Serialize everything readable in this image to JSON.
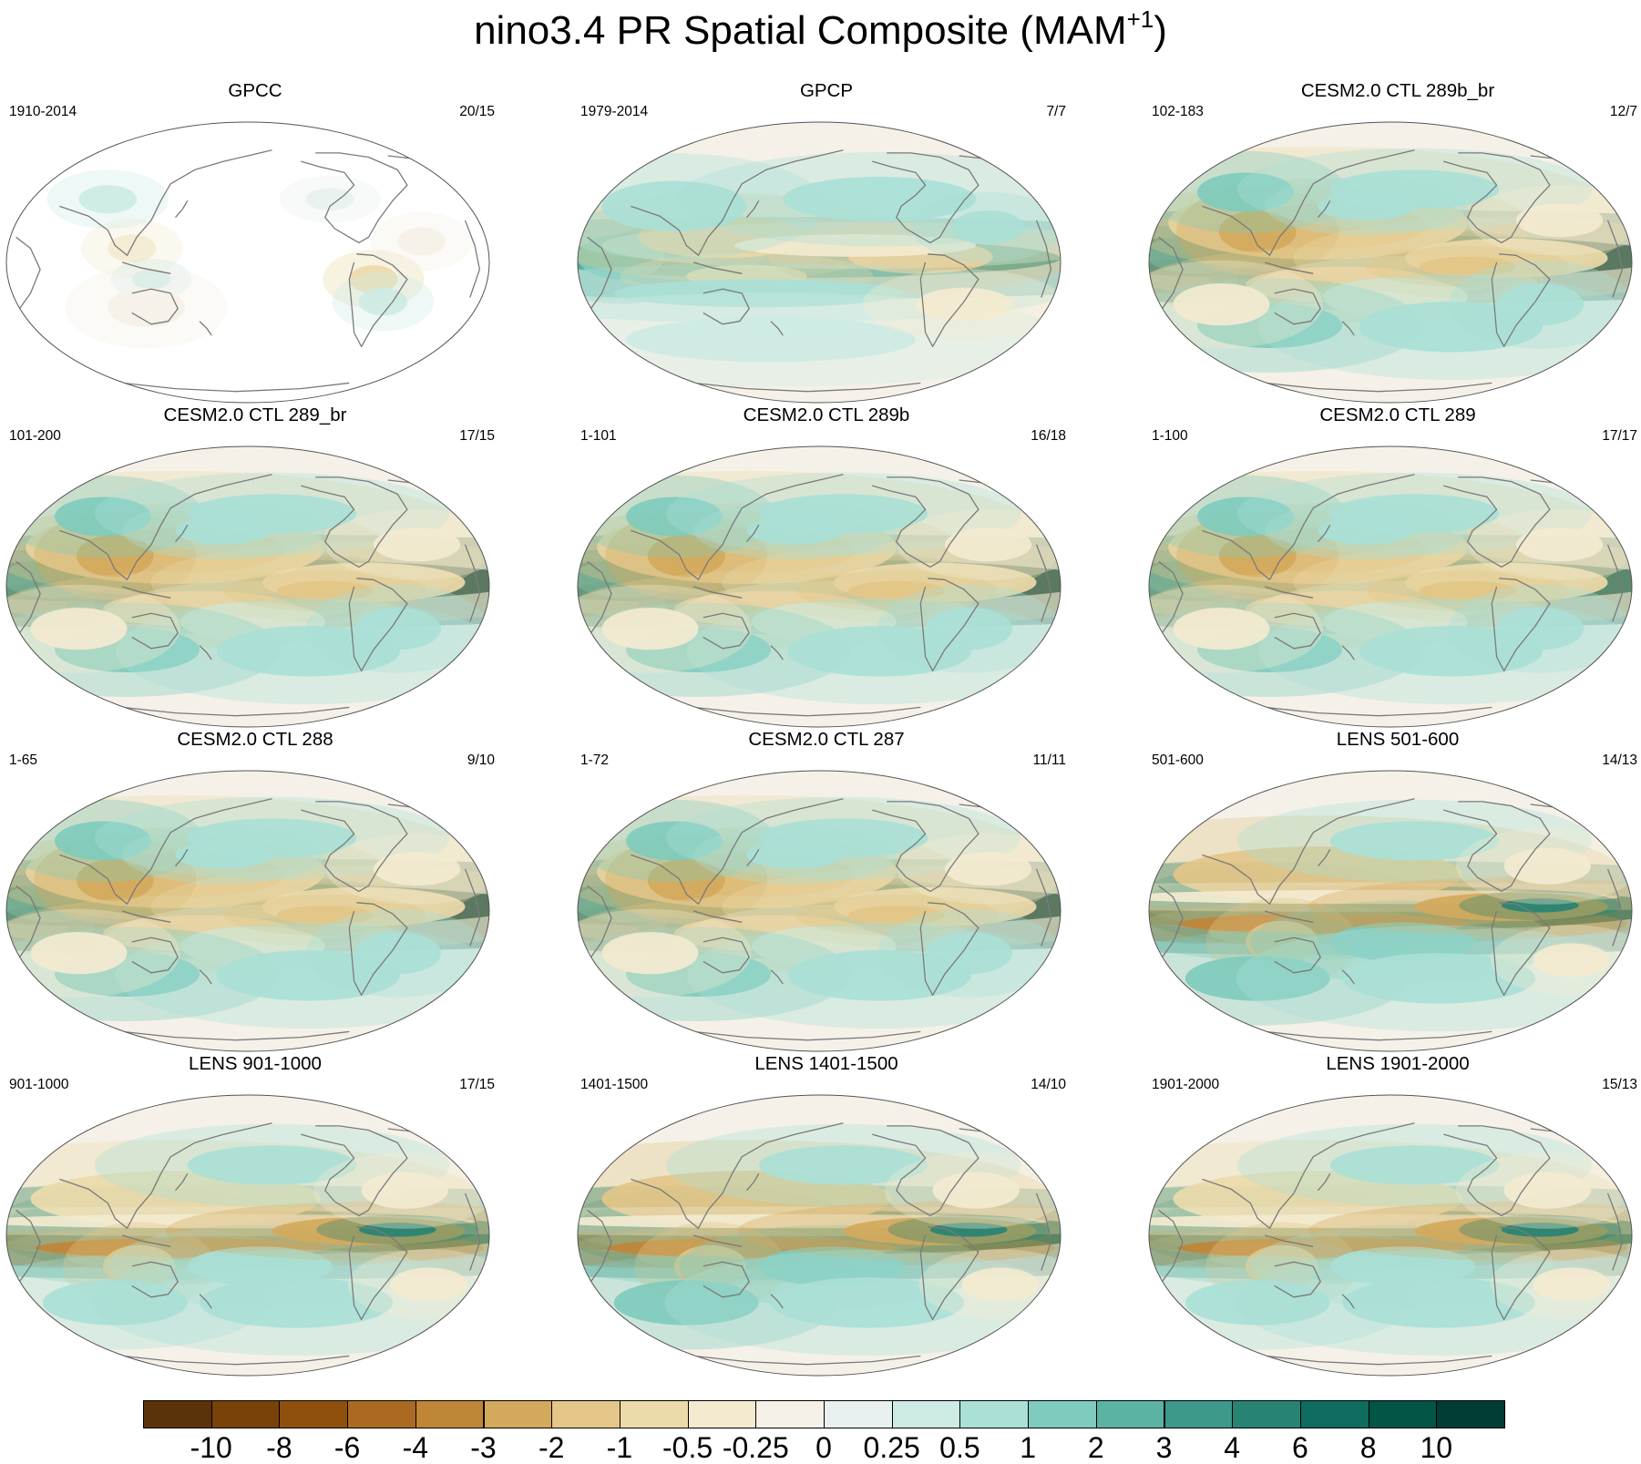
{
  "title": {
    "text": "nino3.4 PR Spatial Composite (MAM",
    "sup": "+1",
    "close": ")"
  },
  "panels": [
    {
      "title": "GPCC",
      "left": "1910-2014",
      "right": "20/15",
      "pattern": "obs-land",
      "strength": 0.45
    },
    {
      "title": "GPCP",
      "left": "1979-2014",
      "right": "7/7",
      "pattern": "obs",
      "strength": 0.75
    },
    {
      "title": "CESM2.0 CTL 289b_br",
      "left": "102-183",
      "right": "12/7",
      "pattern": "model",
      "strength": 1.0
    },
    {
      "title": "CESM2.0 CTL 289_br",
      "left": "101-200",
      "right": "17/15",
      "pattern": "model",
      "strength": 1.0
    },
    {
      "title": "CESM2.0 CTL 289b",
      "left": "1-101",
      "right": "16/18",
      "pattern": "model",
      "strength": 0.95
    },
    {
      "title": "CESM2.0 CTL 289",
      "left": "1-100",
      "right": "17/17",
      "pattern": "model",
      "strength": 0.9
    },
    {
      "title": "CESM2.0 CTL 288",
      "left": "1-65",
      "right": "9/10",
      "pattern": "model",
      "strength": 1.0
    },
    {
      "title": "CESM2.0 CTL 287",
      "left": "1-72",
      "right": "11/11",
      "pattern": "model",
      "strength": 0.95
    },
    {
      "title": "LENS 501-600",
      "left": "501-600",
      "right": "14/13",
      "pattern": "lens",
      "strength": 0.85
    },
    {
      "title": "LENS 901-1000",
      "left": "901-1000",
      "right": "17/15",
      "pattern": "lens",
      "strength": 0.8
    },
    {
      "title": "LENS 1401-1500",
      "left": "1401-1500",
      "right": "14/10",
      "pattern": "lens",
      "strength": 0.85
    },
    {
      "title": "LENS 1901-2000",
      "left": "1901-2000",
      "right": "15/13",
      "pattern": "lens",
      "strength": 0.8
    }
  ],
  "colorbar": {
    "colors": [
      "#5c3309",
      "#784209",
      "#8f500e",
      "#aa6a22",
      "#c08638",
      "#d3a95c",
      "#e3c688",
      "#ecdaaa",
      "#f3ead0",
      "#f5f1e8",
      "#e8f1ef",
      "#cdeae4",
      "#aae0d6",
      "#7fcbbd",
      "#5bb3a3",
      "#3d998a",
      "#278373",
      "#0e6d5e",
      "#035545",
      "#013d32"
    ],
    "labels": [
      "-10",
      "-8",
      "-6",
      "-4",
      "-3",
      "-2",
      "-1",
      "-0.5",
      "-0.25",
      "0",
      "0.25",
      "0.5",
      "1",
      "2",
      "3",
      "4",
      "6",
      "8",
      "10"
    ]
  }
}
